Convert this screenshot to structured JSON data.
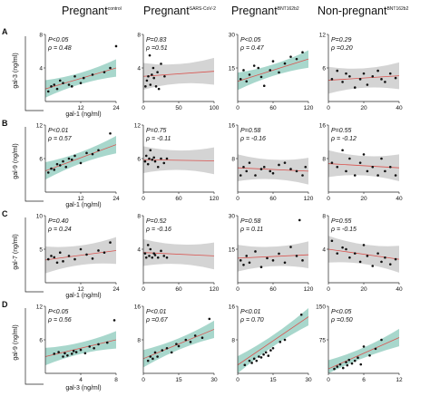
{
  "columns": [
    {
      "label": "Pregnant",
      "sup": "control"
    },
    {
      "label": "Pregnant",
      "sup": "SARS-CoV-2"
    },
    {
      "label": "Pregnant",
      "sup": "BNT162b2"
    },
    {
      "label": "Non-pregnant",
      "sup": "BNT162b2"
    }
  ],
  "rows": [
    {
      "letter": "A",
      "ylabel": "gal-3 (ng/ml)",
      "xlabel": "gal-1 (ng/ml)"
    },
    {
      "letter": "B",
      "ylabel": "gal-9 (ng/ml)",
      "xlabel": "gal-1 (ng/ml)"
    },
    {
      "letter": "C",
      "ylabel": "gal-7 (ng/ml)",
      "xlabel": "gal-1 (ng/ml)"
    },
    {
      "letter": "D",
      "ylabel": "gal-9 (ng/ml)",
      "xlabel": "gal-3 (ng/ml)"
    }
  ],
  "colors": {
    "significant": "#9fd3c7",
    "nonsignificant": "#cfcfcf",
    "line": "#d9534f",
    "point": "#111111"
  },
  "chart_data": [
    {
      "type": "scatter",
      "row": "A",
      "col": "Pregnant control",
      "p_text": "P<0.05",
      "rho_text": "ρ = 0.48",
      "significant": true,
      "xlim": [
        0,
        24
      ],
      "ylim": [
        0,
        8
      ],
      "xticks": [
        12,
        24
      ],
      "yticks": [
        4,
        8
      ],
      "x": [
        1,
        2,
        3,
        4,
        5,
        6,
        8,
        9,
        10,
        12,
        13,
        16,
        20,
        22,
        24
      ],
      "y": [
        1.2,
        1.8,
        2.0,
        1.5,
        2.5,
        2.2,
        2.0,
        1.8,
        3.0,
        2.2,
        2.8,
        3.2,
        3.5,
        4.0,
        6.6
      ],
      "fit": {
        "y0": 1.5,
        "y1": 4.0
      }
    },
    {
      "type": "scatter",
      "row": "A",
      "col": "Pregnant SARS-CoV-2",
      "p_text": "P=0.83",
      "rho_text": "ρ =0.51",
      "significant": false,
      "xlim": [
        0,
        100
      ],
      "ylim": [
        0,
        8
      ],
      "xticks": [
        0,
        50,
        100
      ],
      "yticks": [
        4,
        8
      ],
      "x": [
        3,
        5,
        7,
        9,
        10,
        12,
        14,
        15,
        18,
        20,
        22,
        25,
        30
      ],
      "y": [
        1.8,
        2.5,
        3.0,
        5.5,
        2.0,
        3.2,
        4.0,
        2.8,
        1.8,
        3.5,
        1.5,
        4.5,
        3.0
      ],
      "fit": {
        "y0": 3.0,
        "y1": 3.6
      }
    },
    {
      "type": "scatter",
      "row": "A",
      "col": "Pregnant BNT162b2",
      "p_text": "P<0.05",
      "rho_text": "ρ = 0.47",
      "significant": true,
      "xlim": [
        0,
        120
      ],
      "ylim": [
        0,
        30
      ],
      "xticks": [
        0,
        60,
        120
      ],
      "yticks": [
        15,
        30
      ],
      "x": [
        5,
        10,
        15,
        20,
        28,
        35,
        40,
        45,
        55,
        60,
        70,
        80,
        90,
        100,
        110
      ],
      "y": [
        10,
        14,
        9,
        12,
        16,
        15,
        11,
        7,
        14,
        18,
        13,
        17,
        20,
        19,
        22
      ],
      "fit": {
        "y0": 9,
        "y1": 19
      }
    },
    {
      "type": "scatter",
      "row": "A",
      "col": "Non-pregnant BNT162b2",
      "p_text": "P=0.29",
      "rho_text": "ρ =0.20",
      "significant": false,
      "xlim": [
        0,
        40
      ],
      "ylim": [
        0,
        12
      ],
      "xticks": [
        0,
        20,
        40
      ],
      "yticks": [
        6,
        12
      ],
      "x": [
        2,
        5,
        8,
        10,
        12,
        15,
        18,
        20,
        22,
        25,
        28,
        30,
        32,
        35,
        38
      ],
      "y": [
        4,
        5.5,
        3.5,
        5,
        4.5,
        2.5,
        4,
        5,
        3,
        4.5,
        5.5,
        4,
        3.5,
        5,
        4.2
      ],
      "fit": {
        "y0": 3.8,
        "y1": 4.6
      }
    },
    {
      "type": "scatter",
      "row": "B",
      "col": "Pregnant control",
      "p_text": "P<0.01",
      "rho_text": "ρ = 0.57",
      "significant": true,
      "xlim": [
        0,
        24
      ],
      "ylim": [
        0,
        12
      ],
      "xticks": [
        12,
        24
      ],
      "yticks": [
        6,
        12
      ],
      "x": [
        1,
        2,
        3,
        4,
        5,
        6,
        7,
        8,
        9,
        10,
        12,
        14,
        16,
        18,
        22
      ],
      "y": [
        3.5,
        4.2,
        4.0,
        5.0,
        4.8,
        5.5,
        4.5,
        6.0,
        5.8,
        6.5,
        5.2,
        7.0,
        6.8,
        7.5,
        10.5
      ],
      "fit": {
        "y0": 3.8,
        "y1": 8.5
      }
    },
    {
      "type": "scatter",
      "row": "B",
      "col": "Pregnant SARS-CoV-2",
      "p_text": "P=0.75",
      "rho_text": "ρ = -0.11",
      "significant": false,
      "xlim": [
        0,
        120
      ],
      "ylim": [
        0,
        12
      ],
      "xticks": [
        0,
        60,
        120
      ],
      "yticks": [
        6,
        12
      ],
      "x": [
        3,
        5,
        8,
        10,
        12,
        15,
        18,
        20,
        25,
        30,
        35,
        40
      ],
      "y": [
        5.5,
        6.5,
        5,
        6,
        7.5,
        5.8,
        6.2,
        5.5,
        4.5,
        6,
        5.2,
        6.0
      ],
      "fit": {
        "y0": 5.8,
        "y1": 5.6
      }
    },
    {
      "type": "scatter",
      "row": "B",
      "col": "Pregnant BNT162b2",
      "p_text": "P=0.58",
      "rho_text": "ρ = -0.16",
      "significant": false,
      "xlim": [
        0,
        120
      ],
      "ylim": [
        0,
        16
      ],
      "xticks": [
        0,
        60,
        120
      ],
      "yticks": [
        8,
        16
      ],
      "x": [
        5,
        10,
        15,
        20,
        30,
        40,
        45,
        55,
        60,
        70,
        80,
        90,
        100,
        110,
        115
      ],
      "y": [
        4,
        6,
        5,
        7,
        4,
        5.5,
        6,
        5,
        4.5,
        6.5,
        7,
        5.5,
        5,
        4,
        6
      ],
      "fit": {
        "y0": 5.8,
        "y1": 5.0
      }
    },
    {
      "type": "scatter",
      "row": "B",
      "col": "Non-pregnant BNT162b2",
      "p_text": "P=0.55",
      "rho_text": "ρ = -0.12",
      "significant": false,
      "xlim": [
        0,
        40
      ],
      "ylim": [
        0,
        16
      ],
      "xticks": [
        0,
        20,
        40
      ],
      "yticks": [
        8,
        16
      ],
      "x": [
        2,
        5,
        8,
        10,
        12,
        15,
        18,
        20,
        22,
        25,
        28,
        30,
        32,
        35,
        38
      ],
      "y": [
        7,
        6,
        10,
        5,
        8,
        4,
        7,
        9,
        5,
        6,
        4,
        8,
        5,
        6,
        4
      ],
      "fit": {
        "y0": 6.8,
        "y1": 5.8
      }
    },
    {
      "type": "scatter",
      "row": "C",
      "col": "Pregnant control",
      "p_text": "P=0.40",
      "rho_text": "ρ = 0.24",
      "significant": false,
      "xlim": [
        0,
        24
      ],
      "ylim": [
        0,
        10
      ],
      "xticks": [
        12,
        24
      ],
      "yticks": [
        5,
        10
      ],
      "x": [
        1,
        2,
        3,
        4,
        5,
        6,
        8,
        10,
        12,
        14,
        16,
        18,
        20,
        22
      ],
      "y": [
        3.5,
        4.0,
        3.8,
        3.0,
        4.5,
        3.2,
        4.0,
        3.5,
        5.0,
        4.2,
        3.6,
        4.8,
        4.5,
        6.0
      ],
      "fit": {
        "y0": 3.4,
        "y1": 4.8
      }
    },
    {
      "type": "scatter",
      "row": "C",
      "col": "Pregnant SARS-CoV-2",
      "p_text": "P=0.52",
      "rho_text": "ρ = -0.16",
      "significant": false,
      "xlim": [
        0,
        120
      ],
      "ylim": [
        0,
        8
      ],
      "xticks": [
        0,
        60,
        120
      ],
      "yticks": [
        4,
        8
      ],
      "x": [
        3,
        5,
        8,
        10,
        12,
        15,
        18,
        20,
        25,
        30,
        35,
        40
      ],
      "y": [
        3.5,
        3.0,
        4.5,
        3.2,
        4.0,
        3.0,
        3.5,
        3.3,
        3.0,
        3.8,
        3.2,
        3.0
      ],
      "fit": {
        "y0": 3.6,
        "y1": 3.2
      }
    },
    {
      "type": "scatter",
      "row": "C",
      "col": "Pregnant BNT162b2",
      "p_text": "P=0.58",
      "rho_text": "ρ = 0.11",
      "significant": false,
      "xlim": [
        0,
        120
      ],
      "ylim": [
        0,
        30
      ],
      "xticks": [
        0,
        60,
        120
      ],
      "yticks": [
        15,
        30
      ],
      "x": [
        5,
        10,
        15,
        20,
        30,
        40,
        50,
        60,
        70,
        80,
        90,
        100,
        105,
        110
      ],
      "y": [
        10,
        8,
        12,
        9,
        14,
        7,
        11,
        10,
        13,
        9,
        16,
        12,
        28,
        10
      ],
      "fit": {
        "y0": 11,
        "y1": 12.5
      }
    },
    {
      "type": "scatter",
      "row": "C",
      "col": "Non-pregnant BNT162b2",
      "p_text": "P=0.55",
      "rho_text": "ρ = -0.15",
      "significant": false,
      "xlim": [
        0,
        40
      ],
      "ylim": [
        0,
        8
      ],
      "xticks": [
        0,
        20,
        40
      ],
      "yticks": [
        4,
        8
      ],
      "x": [
        2,
        5,
        8,
        10,
        12,
        15,
        18,
        20,
        22,
        25,
        28,
        30,
        32,
        35,
        38
      ],
      "y": [
        5,
        3.5,
        4.2,
        4,
        3,
        3.5,
        2.5,
        4.5,
        3.2,
        2,
        3.5,
        2.5,
        3,
        2.2,
        2.8
      ],
      "fit": {
        "y0": 4.0,
        "y1": 2.8
      }
    },
    {
      "type": "scatter",
      "row": "D",
      "col": "Pregnant control",
      "p_text": "P<0.05",
      "rho_text": "ρ = 0.56",
      "significant": true,
      "xlim": [
        0,
        8
      ],
      "ylim": [
        0,
        12
      ],
      "xticks": [
        4,
        8
      ],
      "yticks": [
        6,
        12
      ],
      "x": [
        1,
        1.5,
        2,
        2.2,
        2.5,
        3,
        3.2,
        3.5,
        4,
        4.5,
        5,
        5.5,
        6,
        7,
        7.8
      ],
      "y": [
        3.5,
        3.8,
        3.0,
        3.6,
        3.2,
        3.5,
        4.0,
        3.8,
        4.2,
        3.6,
        4.8,
        4.5,
        5.2,
        5.5,
        9.5
      ],
      "fit": {
        "y0": 3.0,
        "y1": 6.0
      }
    },
    {
      "type": "scatter",
      "row": "D",
      "col": "Pregnant SARS-CoV-2",
      "p_text": "P<0.01",
      "rho_text": "ρ =0.67",
      "significant": true,
      "xlim": [
        0,
        30
      ],
      "ylim": [
        0,
        16
      ],
      "xticks": [
        0,
        15,
        30
      ],
      "yticks": [
        8,
        16
      ],
      "x": [
        2,
        3,
        4,
        5,
        6,
        8,
        10,
        12,
        14,
        15,
        18,
        20,
        22,
        25,
        28
      ],
      "y": [
        3,
        4,
        3.5,
        5,
        4,
        5.5,
        6,
        5,
        7,
        6.5,
        8,
        7.5,
        9,
        8.5,
        13
      ],
      "fit": {
        "y0": 3.5,
        "y1": 10.5
      }
    },
    {
      "type": "scatter",
      "row": "D",
      "col": "Pregnant BNT162b2",
      "p_text": "P<0.01",
      "rho_text": "ρ = 0.70",
      "significant": true,
      "xlim": [
        0,
        30
      ],
      "ylim": [
        0,
        16
      ],
      "xticks": [
        0,
        15,
        30
      ],
      "yticks": [
        8,
        16
      ],
      "x": [
        3,
        5,
        6,
        7,
        8,
        9,
        10,
        11,
        12,
        13,
        14,
        15,
        18,
        20,
        27
      ],
      "y": [
        2,
        3,
        2.5,
        3.5,
        3,
        4,
        3.8,
        4.5,
        5,
        4.2,
        5.5,
        6,
        7.5,
        8,
        14
      ],
      "fit": {
        "y0": 2.0,
        "y1": 13.5
      }
    },
    {
      "type": "scatter",
      "row": "D",
      "col": "Non-pregnant BNT162b2",
      "p_text": "P<0.05",
      "rho_text": "ρ =0.50",
      "significant": true,
      "xlim": [
        0,
        12
      ],
      "ylim": [
        0,
        150
      ],
      "xticks": [
        0,
        6,
        12
      ],
      "yticks": [
        75,
        150
      ],
      "x": [
        1,
        1.5,
        2,
        2.5,
        3,
        3.2,
        3.5,
        4,
        4.5,
        5,
        5.5,
        6,
        7,
        8,
        9
      ],
      "y": [
        10,
        15,
        20,
        12,
        25,
        18,
        30,
        22,
        28,
        35,
        20,
        60,
        40,
        55,
        75
      ],
      "fit": {
        "y0": 10,
        "y1": 80
      }
    }
  ]
}
